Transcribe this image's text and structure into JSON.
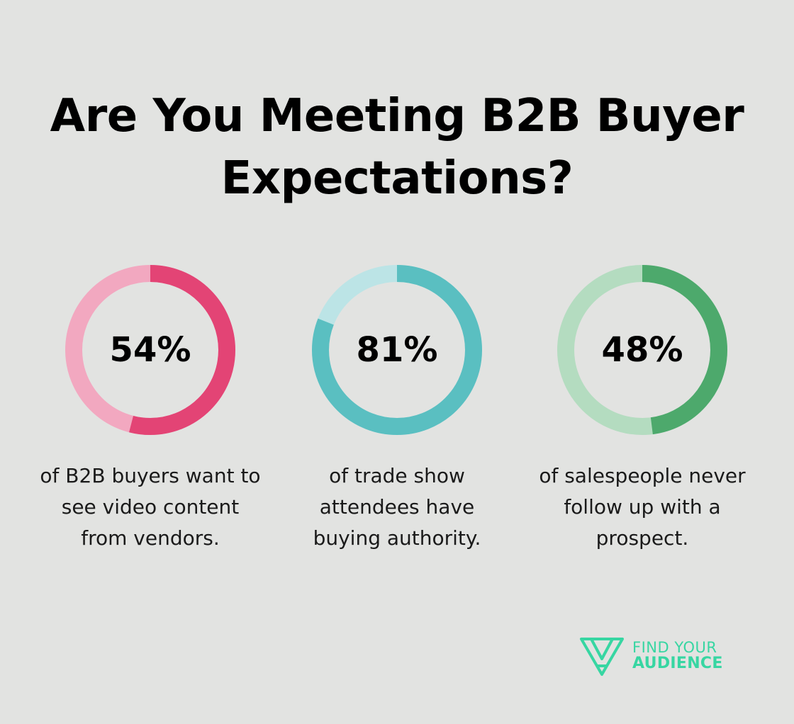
{
  "title": "Are You Meeting B2B Buyer Expectations?",
  "chart_data": [
    {
      "type": "pie",
      "value_label": "54%",
      "values": [
        54,
        46
      ],
      "description": "of B2B buyers want to see video content from vendors.",
      "colors": {
        "filled": "#e34475",
        "track": "#f2a8c0"
      }
    },
    {
      "type": "pie",
      "value_label": "81%",
      "values": [
        81,
        19
      ],
      "description": "of trade show attendees have buying authority.",
      "colors": {
        "filled": "#5abfc1",
        "track": "#bce4e6"
      }
    },
    {
      "type": "pie",
      "value_label": "48%",
      "values": [
        48,
        52
      ],
      "description": "of salespeople never follow up with a prospect.",
      "colors": {
        "filled": "#4da96c",
        "track": "#b4dcc0"
      }
    }
  ],
  "brand": {
    "line1": "FIND YOUR",
    "line2": "AUDIENCE",
    "icon": "triangle-logo-icon",
    "color": "#37d6a2"
  }
}
